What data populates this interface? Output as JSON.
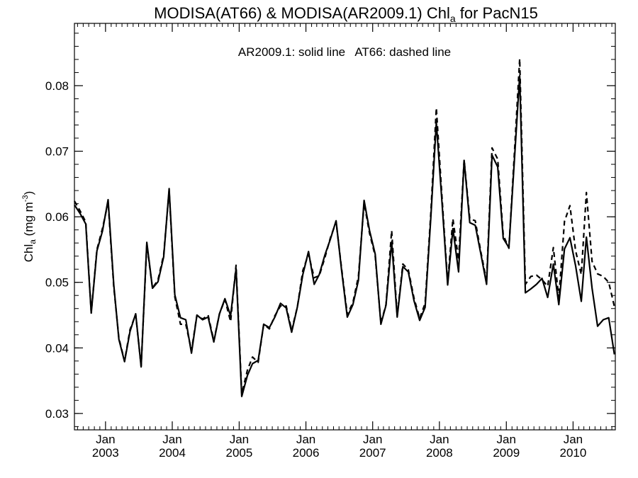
{
  "chart_data": {
    "type": "line",
    "title": {
      "part1": "MODISA(AT66) & MODISA(AR2009.1)  Chl",
      "sub": "a",
      "part2": " for PacN15"
    },
    "annotation": "AR2009.1: solid line   AT66: dashed line",
    "ylabel": {
      "base": "Chl",
      "sub": "a",
      "unit_open": " (mg m",
      "sup": "-3",
      "unit_close": ")"
    },
    "xlabel": "",
    "xlim": [
      "2002-07-15",
      "2010-08-20"
    ],
    "ylim": [
      0.0275,
      0.0895
    ],
    "y_ticks": [
      0.03,
      0.04,
      0.05,
      0.06,
      0.07,
      0.08
    ],
    "y_tick_labels": [
      "0.03",
      "0.04",
      "0.05",
      "0.06",
      "0.07",
      "0.08"
    ],
    "x_ticks": [
      {
        "date": "2003-01-01",
        "month": "Jan",
        "year": "2003"
      },
      {
        "date": "2004-01-01",
        "month": "Jan",
        "year": "2004"
      },
      {
        "date": "2005-01-01",
        "month": "Jan",
        "year": "2005"
      },
      {
        "date": "2006-01-01",
        "month": "Jan",
        "year": "2006"
      },
      {
        "date": "2007-01-01",
        "month": "Jan",
        "year": "2007"
      },
      {
        "date": "2008-01-01",
        "month": "Jan",
        "year": "2008"
      },
      {
        "date": "2009-01-01",
        "month": "Jan",
        "year": "2009"
      },
      {
        "date": "2010-01-01",
        "month": "Jan",
        "year": "2010"
      }
    ],
    "grid": false,
    "series": [
      {
        "name": "AR2009.1",
        "style": "solid",
        "color": "#000000",
        "x": [
          "2002-07-15",
          "2002-08-15",
          "2002-09-15",
          "2002-10-15",
          "2002-11-15",
          "2002-12-15",
          "2003-01-15",
          "2003-02-15",
          "2003-03-15",
          "2003-04-15",
          "2003-05-15",
          "2003-06-15",
          "2003-07-15",
          "2003-08-15",
          "2003-09-15",
          "2003-10-15",
          "2003-11-15",
          "2003-12-15",
          "2004-01-15",
          "2004-02-15",
          "2004-03-15",
          "2004-04-15",
          "2004-05-15",
          "2004-06-15",
          "2004-07-15",
          "2004-08-15",
          "2004-09-15",
          "2004-10-15",
          "2004-11-15",
          "2004-12-15",
          "2005-01-15",
          "2005-02-15",
          "2005-03-15",
          "2005-04-15",
          "2005-05-15",
          "2005-06-15",
          "2005-07-15",
          "2005-08-15",
          "2005-09-15",
          "2005-10-15",
          "2005-11-15",
          "2005-12-15",
          "2006-01-15",
          "2006-02-15",
          "2006-03-15",
          "2006-04-15",
          "2006-05-15",
          "2006-06-15",
          "2006-07-15",
          "2006-08-15",
          "2006-09-15",
          "2006-10-15",
          "2006-11-15",
          "2006-12-15",
          "2007-01-15",
          "2007-02-15",
          "2007-03-15",
          "2007-04-15",
          "2007-05-15",
          "2007-06-15",
          "2007-07-15",
          "2007-08-15",
          "2007-09-15",
          "2007-10-15",
          "2007-11-15",
          "2007-12-15",
          "2008-01-15",
          "2008-02-15",
          "2008-03-15",
          "2008-04-15",
          "2008-05-15",
          "2008-06-15",
          "2008-07-15",
          "2008-08-15",
          "2008-09-15",
          "2008-10-15",
          "2008-11-15",
          "2008-12-15",
          "2009-01-15",
          "2009-02-15",
          "2009-03-15",
          "2009-04-15",
          "2009-05-15",
          "2009-06-15",
          "2009-07-15",
          "2009-08-15",
          "2009-09-15",
          "2009-10-15",
          "2009-11-15",
          "2009-12-15",
          "2010-01-15",
          "2010-02-15",
          "2010-03-15",
          "2010-04-15",
          "2010-05-15",
          "2010-06-15",
          "2010-07-15",
          "2010-08-15"
        ],
        "y": [
          0.0618,
          0.0605,
          0.0589,
          0.0453,
          0.0548,
          0.0578,
          0.0626,
          0.0496,
          0.0413,
          0.0379,
          0.0425,
          0.0452,
          0.0371,
          0.0561,
          0.0491,
          0.0501,
          0.0539,
          0.0643,
          0.0481,
          0.0446,
          0.0443,
          0.0392,
          0.045,
          0.0443,
          0.0447,
          0.0409,
          0.0452,
          0.0475,
          0.0449,
          0.0521,
          0.0326,
          0.0358,
          0.0376,
          0.0381,
          0.0436,
          0.0431,
          0.0447,
          0.0468,
          0.0461,
          0.0424,
          0.0462,
          0.0512,
          0.0547,
          0.0497,
          0.0512,
          0.0542,
          0.0566,
          0.0594,
          0.0518,
          0.0447,
          0.0466,
          0.0503,
          0.0625,
          0.0579,
          0.0543,
          0.0436,
          0.0465,
          0.0562,
          0.0447,
          0.0524,
          0.0516,
          0.0472,
          0.0442,
          0.0462,
          0.0598,
          0.0744,
          0.0622,
          0.0496,
          0.0582,
          0.0516,
          0.0686,
          0.0591,
          0.0587,
          0.0543,
          0.0497,
          0.0694,
          0.0676,
          0.0567,
          0.0553,
          0.0691,
          0.0815,
          0.0484,
          0.049,
          0.0497,
          0.0506,
          0.0477,
          0.0528,
          0.0466,
          0.0551,
          0.0568,
          0.0525,
          0.0471,
          0.0569,
          0.0491,
          0.0433,
          0.0443,
          0.0446,
          0.039
        ]
      },
      {
        "name": "AT66",
        "style": "dashed",
        "color": "#000000",
        "x": [
          "2002-07-15",
          "2002-08-15",
          "2002-09-15",
          "2002-10-15",
          "2002-11-15",
          "2002-12-15",
          "2003-01-15",
          "2003-02-15",
          "2003-03-15",
          "2003-04-15",
          "2003-05-15",
          "2003-06-15",
          "2003-07-15",
          "2003-08-15",
          "2003-09-15",
          "2003-10-15",
          "2003-11-15",
          "2003-12-15",
          "2004-01-15",
          "2004-02-15",
          "2004-03-15",
          "2004-04-15",
          "2004-05-15",
          "2004-06-15",
          "2004-07-15",
          "2004-08-15",
          "2004-09-15",
          "2004-10-15",
          "2004-11-15",
          "2004-12-15",
          "2005-01-15",
          "2005-02-15",
          "2005-03-15",
          "2005-04-15",
          "2005-05-15",
          "2005-06-15",
          "2005-07-15",
          "2005-08-15",
          "2005-09-15",
          "2005-10-15",
          "2005-11-15",
          "2005-12-15",
          "2006-01-15",
          "2006-02-15",
          "2006-03-15",
          "2006-04-15",
          "2006-05-15",
          "2006-06-15",
          "2006-07-15",
          "2006-08-15",
          "2006-09-15",
          "2006-10-15",
          "2006-11-15",
          "2006-12-15",
          "2007-01-15",
          "2007-02-15",
          "2007-03-15",
          "2007-04-15",
          "2007-05-15",
          "2007-06-15",
          "2007-07-15",
          "2007-08-15",
          "2007-09-15",
          "2007-10-15",
          "2007-11-15",
          "2007-12-15",
          "2008-01-15",
          "2008-02-15",
          "2008-03-15",
          "2008-04-15",
          "2008-05-15",
          "2008-06-15",
          "2008-07-15",
          "2008-08-15",
          "2008-09-15",
          "2008-10-15",
          "2008-11-15",
          "2008-12-15",
          "2009-01-15",
          "2009-02-15",
          "2009-03-15",
          "2009-04-15",
          "2009-05-15",
          "2009-06-15",
          "2009-07-15",
          "2009-08-15",
          "2009-09-15",
          "2009-10-15",
          "2009-11-15",
          "2009-12-15",
          "2010-01-15",
          "2010-02-15",
          "2010-03-15",
          "2010-04-15",
          "2010-05-15",
          "2010-06-15",
          "2010-07-15",
          "2010-08-15"
        ],
        "y": [
          0.0624,
          0.0609,
          0.0592,
          0.0454,
          0.055,
          0.0582,
          0.0622,
          0.0493,
          0.0415,
          0.038,
          0.0428,
          0.0451,
          0.0372,
          0.0558,
          0.0491,
          0.0504,
          0.0542,
          0.064,
          0.0478,
          0.0436,
          0.0436,
          0.0396,
          0.045,
          0.0444,
          0.045,
          0.0411,
          0.0452,
          0.0474,
          0.044,
          0.0526,
          0.033,
          0.0366,
          0.0386,
          0.0378,
          0.0436,
          0.0429,
          0.0449,
          0.0464,
          0.0464,
          0.0427,
          0.0462,
          0.0518,
          0.0543,
          0.0507,
          0.051,
          0.0538,
          0.0568,
          0.0592,
          0.0521,
          0.0451,
          0.0469,
          0.0509,
          0.0621,
          0.0575,
          0.054,
          0.0438,
          0.0466,
          0.0579,
          0.0449,
          0.0528,
          0.0519,
          0.0476,
          0.0445,
          0.0468,
          0.0605,
          0.0766,
          0.063,
          0.05,
          0.0597,
          0.0534,
          0.0687,
          0.0597,
          0.0594,
          0.0546,
          0.0502,
          0.0705,
          0.0688,
          0.0572,
          0.0552,
          0.0702,
          0.0841,
          0.0497,
          0.0509,
          0.0511,
          0.0504,
          0.0494,
          0.0553,
          0.0476,
          0.0593,
          0.0617,
          0.0548,
          0.0512,
          0.0637,
          0.0532,
          0.0513,
          0.0509,
          0.05,
          0.0463
        ]
      }
    ]
  }
}
